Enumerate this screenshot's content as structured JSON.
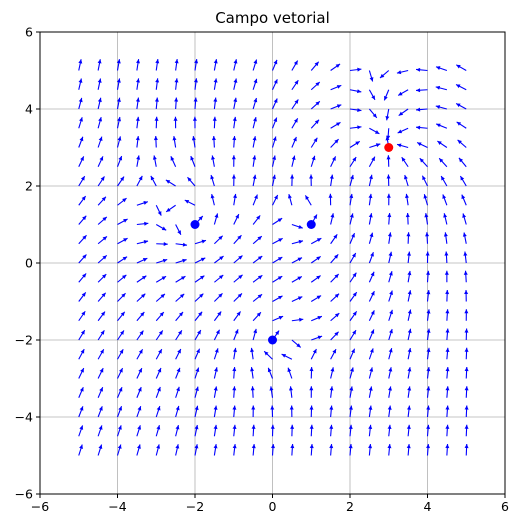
{
  "chart_data": {
    "type": "quiver",
    "title": "Campo vetorial",
    "xlabel": "",
    "ylabel": "",
    "xlim": [
      -6,
      6
    ],
    "ylim": [
      -6,
      6
    ],
    "xticks": [
      -6,
      -4,
      -2,
      0,
      2,
      4,
      6
    ],
    "yticks": [
      -6,
      -4,
      -2,
      0,
      2,
      4,
      6
    ],
    "xtick_labels": [
      "−6",
      "−4",
      "−2",
      "0",
      "2",
      "4",
      "6"
    ],
    "ytick_labels": [
      "−6",
      "−4",
      "−2",
      "0",
      "2",
      "4",
      "6"
    ],
    "grid": true,
    "vector_grid": {
      "x_start": -5,
      "x_end": 5,
      "y_start": -5,
      "y_end": 5,
      "count": 21
    },
    "vector_color": "#0000ff",
    "field_sources": [
      {
        "x": -2,
        "y": 1,
        "color": "#0000ff",
        "kind": "vortex_ccw"
      },
      {
        "x": 1,
        "y": 1,
        "color": "#0000ff",
        "kind": "vortex_ccw"
      },
      {
        "x": 0,
        "y": -2,
        "color": "#0000ff",
        "kind": "vortex_cw"
      },
      {
        "x": 3,
        "y": 3,
        "color": "#ff0000",
        "kind": "sink"
      }
    ],
    "uniform_flow": [
      0,
      1
    ]
  }
}
